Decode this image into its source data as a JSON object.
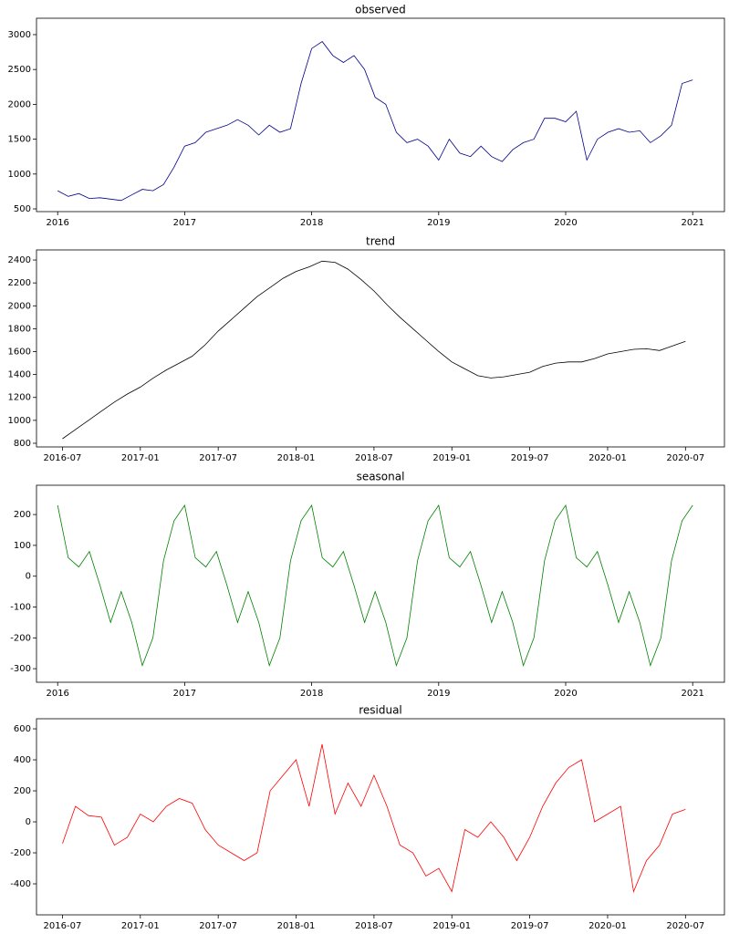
{
  "chart_data": [
    {
      "type": "line",
      "title": "observed",
      "color": "#00008b",
      "x": [
        "2016-01",
        "2016-02",
        "2016-03",
        "2016-04",
        "2016-05",
        "2016-06",
        "2016-07",
        "2016-08",
        "2016-09",
        "2016-10",
        "2016-11",
        "2016-12",
        "2017-01",
        "2017-02",
        "2017-03",
        "2017-04",
        "2017-05",
        "2017-06",
        "2017-07",
        "2017-08",
        "2017-09",
        "2017-10",
        "2017-11",
        "2017-12",
        "2018-01",
        "2018-02",
        "2018-03",
        "2018-04",
        "2018-05",
        "2018-06",
        "2018-07",
        "2018-08",
        "2018-09",
        "2018-10",
        "2018-11",
        "2018-12",
        "2019-01",
        "2019-02",
        "2019-03",
        "2019-04",
        "2019-05",
        "2019-06",
        "2019-07",
        "2019-08",
        "2019-09",
        "2019-10",
        "2019-11",
        "2019-12",
        "2020-01",
        "2020-02",
        "2020-03",
        "2020-04",
        "2020-05",
        "2020-06",
        "2020-07",
        "2020-08",
        "2020-09",
        "2020-10",
        "2020-11",
        "2020-12",
        "2021-01"
      ],
      "values": [
        760,
        680,
        720,
        650,
        660,
        640,
        620,
        700,
        780,
        760,
        850,
        1100,
        1400,
        1450,
        1600,
        1650,
        1700,
        1780,
        1700,
        1560,
        1700,
        1600,
        1650,
        2300,
        2800,
        2900,
        2700,
        2600,
        2700,
        2500,
        2100,
        2000,
        1600,
        1450,
        1500,
        1400,
        1200,
        1500,
        1300,
        1250,
        1400,
        1250,
        1180,
        1350,
        1450,
        1500,
        1800,
        1800,
        1750,
        1900,
        1200,
        1500,
        1600,
        1650,
        1600,
        1620,
        1450,
        1550,
        1700,
        2300,
        2350
      ],
      "xlim": [
        "2015-11",
        "2021-04"
      ],
      "xticks": [
        "2016",
        "2017",
        "2018",
        "2019",
        "2020",
        "2021"
      ],
      "ylim": [
        461,
        3235
      ],
      "yticks": [
        500,
        1000,
        1500,
        2000,
        2500,
        3000
      ]
    },
    {
      "type": "line",
      "title": "trend",
      "color": "#000000",
      "x": [
        "2016-07",
        "2016-08",
        "2016-09",
        "2016-10",
        "2016-11",
        "2016-12",
        "2017-01",
        "2017-02",
        "2017-03",
        "2017-04",
        "2017-05",
        "2017-06",
        "2017-07",
        "2017-08",
        "2017-09",
        "2017-10",
        "2017-11",
        "2017-12",
        "2018-01",
        "2018-02",
        "2018-03",
        "2018-04",
        "2018-05",
        "2018-06",
        "2018-07",
        "2018-08",
        "2018-09",
        "2018-10",
        "2018-11",
        "2018-12",
        "2019-01",
        "2019-02",
        "2019-03",
        "2019-04",
        "2019-05",
        "2019-06",
        "2019-07",
        "2019-08",
        "2019-09",
        "2019-10",
        "2019-11",
        "2019-12",
        "2020-01",
        "2020-02",
        "2020-03",
        "2020-04",
        "2020-05",
        "2020-06",
        "2020-07"
      ],
      "values": [
        840,
        920,
        1000,
        1080,
        1160,
        1230,
        1290,
        1370,
        1440,
        1500,
        1560,
        1660,
        1780,
        1880,
        1980,
        2080,
        2160,
        2240,
        2300,
        2340,
        2390,
        2380,
        2320,
        2230,
        2130,
        2010,
        1900,
        1800,
        1700,
        1600,
        1510,
        1450,
        1390,
        1370,
        1380,
        1400,
        1420,
        1470,
        1500,
        1510,
        1510,
        1540,
        1580,
        1600,
        1620,
        1625,
        1610,
        1650,
        1690
      ],
      "xlim": [
        "2016-05",
        "2020-10"
      ],
      "xticks": [
        "2016-07",
        "2017-01",
        "2017-07",
        "2018-01",
        "2018-07",
        "2019-01",
        "2019-07",
        "2020-01",
        "2020-07"
      ],
      "ylim": [
        768,
        2488
      ],
      "yticks": [
        800,
        1000,
        1200,
        1400,
        1600,
        1800,
        2000,
        2200,
        2400
      ]
    },
    {
      "type": "line",
      "title": "seasonal",
      "color": "#008000",
      "x": [
        "2016-01",
        "2016-02",
        "2016-03",
        "2016-04",
        "2016-05",
        "2016-06",
        "2016-07",
        "2016-08",
        "2016-09",
        "2016-10",
        "2016-11",
        "2016-12",
        "2017-01",
        "2017-02",
        "2017-03",
        "2017-04",
        "2017-05",
        "2017-06",
        "2017-07",
        "2017-08",
        "2017-09",
        "2017-10",
        "2017-11",
        "2017-12",
        "2018-01",
        "2018-02",
        "2018-03",
        "2018-04",
        "2018-05",
        "2018-06",
        "2018-07",
        "2018-08",
        "2018-09",
        "2018-10",
        "2018-11",
        "2018-12",
        "2019-01",
        "2019-02",
        "2019-03",
        "2019-04",
        "2019-05",
        "2019-06",
        "2019-07",
        "2019-08",
        "2019-09",
        "2019-10",
        "2019-11",
        "2019-12",
        "2020-01",
        "2020-02",
        "2020-03",
        "2020-04",
        "2020-05",
        "2020-06",
        "2020-07",
        "2020-08",
        "2020-09",
        "2020-10",
        "2020-11",
        "2020-12",
        "2021-01"
      ],
      "values": [
        230,
        60,
        30,
        80,
        -30,
        -150,
        -50,
        -150,
        -290,
        -200,
        50,
        180,
        230,
        60,
        30,
        80,
        -30,
        -150,
        -50,
        -150,
        -290,
        -200,
        50,
        180,
        230,
        60,
        30,
        80,
        -30,
        -150,
        -50,
        -150,
        -290,
        -200,
        50,
        180,
        230,
        60,
        30,
        80,
        -30,
        -150,
        -50,
        -150,
        -290,
        -200,
        50,
        180,
        230,
        60,
        30,
        80,
        -30,
        -150,
        -50,
        -150,
        -290,
        -200,
        50,
        180,
        230
      ],
      "xlim": [
        "2015-11",
        "2021-04"
      ],
      "xticks": [
        "2016",
        "2017",
        "2018",
        "2019",
        "2020",
        "2021"
      ],
      "ylim": [
        -344,
        295
      ],
      "yticks": [
        -300,
        -200,
        -100,
        0,
        100,
        200
      ]
    },
    {
      "type": "line",
      "title": "residual",
      "color": "#ff0000",
      "x": [
        "2016-07",
        "2016-08",
        "2016-09",
        "2016-10",
        "2016-11",
        "2016-12",
        "2017-01",
        "2017-02",
        "2017-03",
        "2017-04",
        "2017-05",
        "2017-06",
        "2017-07",
        "2017-08",
        "2017-09",
        "2017-10",
        "2017-11",
        "2017-12",
        "2018-01",
        "2018-02",
        "2018-03",
        "2018-04",
        "2018-05",
        "2018-06",
        "2018-07",
        "2018-08",
        "2018-09",
        "2018-10",
        "2018-11",
        "2018-12",
        "2019-01",
        "2019-02",
        "2019-03",
        "2019-04",
        "2019-05",
        "2019-06",
        "2019-07",
        "2019-08",
        "2019-09",
        "2019-10",
        "2019-11",
        "2019-12",
        "2020-01",
        "2020-02",
        "2020-03",
        "2020-04",
        "2020-05",
        "2020-06",
        "2020-07"
      ],
      "values": [
        -140,
        100,
        40,
        30,
        -150,
        -100,
        50,
        0,
        100,
        150,
        120,
        -50,
        -150,
        -200,
        -250,
        -200,
        200,
        300,
        400,
        100,
        500,
        50,
        250,
        100,
        300,
        100,
        -150,
        -200,
        -350,
        -300,
        -450,
        -50,
        -100,
        0,
        -100,
        -250,
        -100,
        100,
        250,
        350,
        400,
        0,
        50,
        100,
        -450,
        -250,
        -150,
        50,
        80
      ],
      "xlim": [
        "2016-05",
        "2020-10"
      ],
      "xticks": [
        "2016-07",
        "2017-01",
        "2017-07",
        "2018-01",
        "2018-07",
        "2019-01",
        "2019-07",
        "2020-01",
        "2020-07"
      ],
      "ylim": [
        -600,
        665
      ],
      "yticks": [
        -400,
        -200,
        0,
        200,
        400,
        600
      ]
    }
  ]
}
